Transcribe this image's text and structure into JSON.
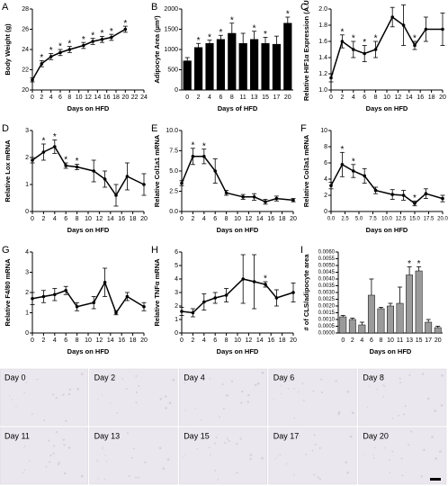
{
  "chart_data": [
    {
      "type": "line",
      "label": "A",
      "ylabel": "Body Weight (g)",
      "xlabel": "Days on HFD",
      "color": "#000000",
      "xlim": [
        0,
        24
      ],
      "xticks": [
        0,
        2,
        4,
        6,
        8,
        10,
        12,
        14,
        16,
        18,
        20,
        22,
        24
      ],
      "ylim": [
        20,
        28
      ],
      "yticks": [
        20,
        22,
        24,
        26,
        28
      ],
      "x": [
        0,
        2,
        4,
        6,
        8,
        11,
        13,
        15,
        17,
        20
      ],
      "values": [
        21,
        22.6,
        23.3,
        23.7,
        24.0,
        24.4,
        24.8,
        25.0,
        25.2,
        26.0
      ],
      "errors": [
        0.2,
        0.3,
        0.3,
        0.3,
        0.3,
        0.3,
        0.3,
        0.3,
        0.3,
        0.3
      ],
      "annotations": [
        {
          "text": "*",
          "x": 2
        },
        {
          "text": "*",
          "x": 4
        },
        {
          "text": "*",
          "x": 6
        },
        {
          "text": "*",
          "x": 8
        },
        {
          "text": "*",
          "x": 11
        },
        {
          "text": "*",
          "x": 13
        },
        {
          "text": "*",
          "x": 15
        },
        {
          "text": "*",
          "x": 17
        },
        {
          "text": "*",
          "x": 20
        }
      ]
    },
    {
      "type": "bar",
      "label": "B",
      "ylabel": "Adipocyte Area (µm²)",
      "xlabel": "Days of HFD",
      "color": "#000000",
      "ylim": [
        0,
        2000
      ],
      "yticks": [
        0,
        500,
        1000,
        1500,
        2000
      ],
      "categories": [
        "0",
        "2",
        "4",
        "6",
        "8",
        "11",
        "13",
        "15",
        "17",
        "20"
      ],
      "values": [
        720,
        1050,
        1150,
        1250,
        1400,
        1150,
        1250,
        1150,
        1130,
        1650
      ],
      "errors": [
        80,
        100,
        80,
        100,
        250,
        250,
        200,
        150,
        200,
        150
      ],
      "annotations": [
        {
          "text": "*",
          "x": "2"
        },
        {
          "text": "*",
          "x": "4"
        },
        {
          "text": "*",
          "x": "6"
        },
        {
          "text": "*",
          "x": "8"
        },
        {
          "text": "*",
          "x": "13"
        },
        {
          "text": "*",
          "x": "15"
        },
        {
          "text": "*",
          "x": "20"
        }
      ]
    },
    {
      "type": "line",
      "label": "C",
      "ylabel": "Relative HIF1α Expression (A.U)",
      "xlabel": "Days on HFD",
      "color": "#000000",
      "xlim": [
        0,
        20
      ],
      "xticks": [
        0,
        2,
        4,
        6,
        8,
        10,
        12,
        14,
        16,
        18,
        20
      ],
      "ylim": [
        1.0,
        2.0
      ],
      "yticks": [
        {
          "value": 1.0,
          "label": "1.0"
        },
        1.2,
        1.4,
        1.6,
        1.8,
        {
          "value": 2.0,
          "label": "2.0"
        }
      ],
      "x": [
        0,
        2,
        4,
        6,
        8,
        11,
        13,
        15,
        17,
        20
      ],
      "values": [
        1.15,
        1.6,
        1.5,
        1.45,
        1.5,
        1.9,
        1.8,
        1.55,
        1.75,
        1.75
      ],
      "errors": [
        0.05,
        0.08,
        0.1,
        0.1,
        0.1,
        0.12,
        0.25,
        0.05,
        0.15,
        0.2
      ],
      "annotations": [
        {
          "text": "*",
          "x": 2
        },
        {
          "text": "*",
          "x": 4
        },
        {
          "text": "*",
          "x": 6
        },
        {
          "text": "*",
          "x": 8
        },
        {
          "text": "*",
          "x": 15
        }
      ]
    },
    {
      "type": "line",
      "label": "D",
      "ylabel": "Relative Lox mRNA",
      "xlabel": "Days on HFD",
      "color": "#000000",
      "xlim": [
        0,
        20
      ],
      "xticks": [
        0,
        2,
        4,
        6,
        8,
        10,
        12,
        14,
        16,
        18,
        20
      ],
      "ylim": [
        0,
        3
      ],
      "yticks": [
        0,
        1,
        2,
        3
      ],
      "x": [
        0,
        2,
        4,
        6,
        8,
        11,
        13,
        15,
        17,
        20
      ],
      "values": [
        1.9,
        2.2,
        2.4,
        1.7,
        1.65,
        1.5,
        1.2,
        0.6,
        1.3,
        1.0
      ],
      "errors": [
        0.1,
        0.3,
        0.25,
        0.1,
        0.1,
        0.4,
        0.3,
        0.4,
        0.5,
        0.4
      ],
      "annotations": [
        {
          "text": "*",
          "x": 2
        },
        {
          "text": "*",
          "x": 4
        },
        {
          "text": "*",
          "x": 6
        },
        {
          "text": "*",
          "x": 8
        }
      ]
    },
    {
      "type": "line",
      "label": "E",
      "ylabel": "Relative Col1a1 mRNA",
      "xlabel": "Days on HFD",
      "color": "#000000",
      "xlim": [
        0,
        20
      ],
      "xticks": [
        0,
        2,
        4,
        6,
        8,
        10,
        12,
        14,
        16,
        18,
        20
      ],
      "ylim": [
        0,
        10
      ],
      "yticks": [
        {
          "value": 0,
          "label": "0.0"
        },
        2.5,
        {
          "value": 5,
          "label": "5.0"
        },
        7.5,
        {
          "value": 10,
          "label": "10.0"
        }
      ],
      "x": [
        0,
        2,
        4,
        6,
        8,
        11,
        13,
        15,
        17,
        20
      ],
      "values": [
        3.5,
        6.8,
        6.8,
        5.0,
        2.3,
        1.8,
        1.8,
        1.2,
        1.6,
        1.4
      ],
      "errors": [
        0.3,
        1.0,
        0.9,
        1.5,
        0.3,
        0.3,
        0.4,
        0.3,
        0.3,
        0.2
      ],
      "annotations": [
        {
          "text": "*",
          "x": 2
        },
        {
          "text": "*",
          "x": 4
        }
      ]
    },
    {
      "type": "line",
      "label": "F",
      "ylabel": "Relative Col3a1 mRNA",
      "xlabel": "Days on HFD",
      "color": "#000000",
      "xlim": [
        0,
        20
      ],
      "xticks": [
        {
          "value": 0,
          "label": "0.0"
        },
        2.5,
        {
          "value": 5,
          "label": "5.0"
        },
        7.5,
        {
          "value": 10,
          "label": "10.0"
        },
        12.5,
        {
          "value": 15,
          "label": "15.0"
        },
        17.5,
        {
          "value": 20,
          "label": "20.0"
        }
      ],
      "ylim": [
        0,
        10
      ],
      "yticks": [
        0,
        2,
        4,
        6,
        8,
        10
      ],
      "x": [
        0,
        2,
        4,
        6,
        8,
        11,
        13,
        15,
        17,
        20
      ],
      "values": [
        3.2,
        5.8,
        5.0,
        4.4,
        2.6,
        2.1,
        2.0,
        1.0,
        2.2,
        1.6
      ],
      "errors": [
        0.4,
        1.5,
        0.8,
        0.9,
        0.4,
        0.6,
        0.6,
        0.3,
        0.6,
        0.4
      ],
      "annotations": [
        {
          "text": "*",
          "x": 2
        },
        {
          "text": "*",
          "x": 4
        },
        {
          "text": "*",
          "x": 15
        }
      ]
    },
    {
      "type": "line",
      "label": "G",
      "ylabel": "Relative F4/80 mRNA",
      "xlabel": "Days on HFD",
      "color": "#000000",
      "xlim": [
        0,
        20
      ],
      "xticks": [
        0,
        2,
        4,
        6,
        8,
        10,
        12,
        14,
        16,
        18,
        20
      ],
      "ylim": [
        0,
        4
      ],
      "yticks": [
        0,
        1,
        2,
        3,
        4
      ],
      "x": [
        0,
        2,
        4,
        6,
        8,
        11,
        13,
        15,
        17,
        20
      ],
      "values": [
        1.7,
        1.8,
        1.9,
        2.1,
        1.3,
        1.5,
        2.5,
        1.0,
        1.8,
        1.3
      ],
      "errors": [
        0.3,
        0.3,
        0.3,
        0.2,
        0.2,
        0.3,
        0.7,
        0.1,
        0.2,
        0.2
      ],
      "annotations": []
    },
    {
      "type": "line",
      "label": "H",
      "ylabel": "Relative TNFα mRNA",
      "xlabel": "Days on HFD",
      "color": "#000000",
      "xlim": [
        0,
        20
      ],
      "xticks": [
        0,
        2,
        4,
        6,
        8,
        10,
        12,
        14,
        16,
        18,
        20
      ],
      "ylim": [
        0,
        6
      ],
      "yticks": [
        0,
        1,
        2,
        3,
        4,
        5,
        6
      ],
      "x": [
        0,
        2,
        4,
        6,
        8,
        11,
        13,
        15,
        17,
        20
      ],
      "values": [
        1.6,
        1.5,
        2.3,
        2.6,
        2.8,
        4.0,
        3.8,
        3.6,
        2.6,
        3.0
      ],
      "errors": [
        0.3,
        0.3,
        0.6,
        0.4,
        0.5,
        1.8,
        2.0,
        0.2,
        0.6,
        0.7
      ],
      "annotations": [
        {
          "text": "*",
          "x": 15
        }
      ]
    },
    {
      "type": "bar",
      "label": "I",
      "ylabel": "# of CLS/adipocyte area",
      "xlabel": "Days on HFD",
      "color": "#9a9a9a",
      "ylim": [
        0,
        0.006
      ],
      "yticks": [
        {
          "value": 0,
          "label": "0.0000"
        },
        {
          "value": 0.0005,
          "label": "0.0005"
        },
        {
          "value": 0.001,
          "label": "0.0010"
        },
        {
          "value": 0.0015,
          "label": "0.0015"
        },
        {
          "value": 0.002,
          "label": "0.0020"
        },
        {
          "value": 0.0025,
          "label": "0.0025"
        },
        {
          "value": 0.003,
          "label": "0.0030"
        },
        {
          "value": 0.0035,
          "label": "0.0035"
        },
        {
          "value": 0.004,
          "label": "0.0040"
        },
        {
          "value": 0.0045,
          "label": "0.0045"
        },
        {
          "value": 0.005,
          "label": "0.0050"
        },
        {
          "value": 0.0055,
          "label": "0.0055"
        },
        {
          "value": 0.006,
          "label": "0.0060"
        }
      ],
      "categories": [
        "0",
        "2",
        "4",
        "6",
        "8",
        "10",
        "11",
        "13",
        "15",
        "17",
        "20"
      ],
      "values": [
        0.0012,
        0.001,
        0.0006,
        0.0028,
        0.0018,
        0.002,
        0.0022,
        0.0043,
        0.0046,
        0.0008,
        0.0004
      ],
      "errors": [
        0.0001,
        0.0001,
        0.0002,
        0.0012,
        0.0001,
        0.0002,
        0.0012,
        0.0006,
        0.0003,
        0.0002,
        0.0001
      ],
      "annotations": [
        {
          "text": "*",
          "x": "13"
        },
        {
          "text": "*",
          "x": "15"
        }
      ]
    }
  ],
  "images": [
    {
      "label": "Day 0"
    },
    {
      "label": "Day 2"
    },
    {
      "label": "Day 4"
    },
    {
      "label": "Day 6"
    },
    {
      "label": "Day 8"
    },
    {
      "label": "Day 11"
    },
    {
      "label": "Day 13"
    },
    {
      "label": "Day 15"
    },
    {
      "label": "Day 17"
    },
    {
      "label": "Day 20"
    }
  ]
}
